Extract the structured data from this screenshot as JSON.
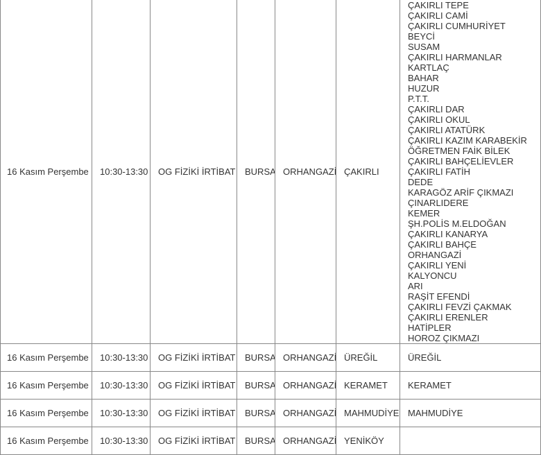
{
  "rows": [
    {
      "date": "16 Kasım Perşembe",
      "time": "10:30-13:30",
      "reason": "OG FİZİKİ İRTİBAT",
      "city": "BURSA",
      "district": "ORHANGAZİ",
      "neighborhood": "ÇAKIRLI",
      "streets": [
        "ÇAKIRLI TEPE",
        "ÇAKIRLI CAMİ",
        "ÇAKIRLI CUMHURİYET",
        "BEYCİ",
        "SUSAM",
        "ÇAKIRLI HARMANLAR",
        "KARTLAÇ",
        "BAHAR",
        "HUZUR",
        "P.T.T.",
        "ÇAKIRLI DAR",
        "ÇAKIRLI OKUL",
        "ÇAKIRLI ATATÜRK",
        "ÇAKIRLI KAZIM KARABEKİR",
        "ÖĞRETMEN FAİK BİLEK",
        "ÇAKIRLI BAHÇELİEVLER",
        "ÇAKIRLI FATİH",
        "DEDE",
        "KARAGÖZ ARİF ÇIKMAZI",
        "ÇINARLIDERE",
        "KEMER",
        "ŞH.POLİS M.ELDOĞAN",
        "ÇAKIRLI KANARYA",
        "ÇAKIRLI BAHÇE",
        "ORHANGAZİ",
        "ÇAKIRLI YENİ",
        "KALYONCU",
        "ARI",
        "RAŞİT EFENDİ",
        "ÇAKIRLI FEVZİ ÇAKMAK",
        "ÇAKIRLI ERENLER",
        "HATİPLER",
        "HOROZ ÇIKMAZI"
      ]
    },
    {
      "date": "16 Kasım Perşembe",
      "time": "10:30-13:30",
      "reason": "OG FİZİKİ İRTİBAT",
      "city": "BURSA",
      "district": "ORHANGAZİ",
      "neighborhood": "ÜREĞİL",
      "streets": [
        "ÜREĞİL"
      ]
    },
    {
      "date": "16 Kasım Perşembe",
      "time": "10:30-13:30",
      "reason": "OG FİZİKİ İRTİBAT",
      "city": "BURSA",
      "district": "ORHANGAZİ",
      "neighborhood": "KERAMET",
      "streets": [
        "KERAMET"
      ]
    },
    {
      "date": "16 Kasım Perşembe",
      "time": "10:30-13:30",
      "reason": "OG FİZİKİ İRTİBAT",
      "city": "BURSA",
      "district": "ORHANGAZİ",
      "neighborhood": "MAHMUDİYE",
      "streets": [
        "MAHMUDİYE"
      ]
    },
    {
      "date": "16 Kasım Perşembe",
      "time": "10:30-13:30",
      "reason": "OG FİZİKİ İRTİBAT",
      "city": "BURSA",
      "district": "ORHANGAZİ",
      "neighborhood": "YENİKÖY",
      "streets": []
    }
  ]
}
